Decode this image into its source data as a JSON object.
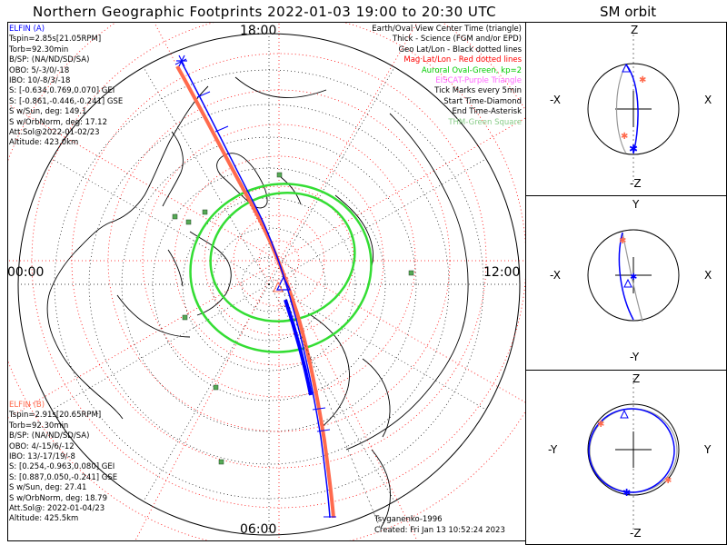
{
  "title": "Northern Geographic Footprints 2022-01-03 19:00 to 20:30 UTC",
  "sm_title": "SM orbit",
  "map": {
    "top_label": "18:00",
    "left_label": "00:00",
    "right_label": "12:00",
    "bottom_label": "06:00",
    "credit": "Tsyganenko-1996",
    "created": "Created: Fri Jan 13 10:52:24 2023"
  },
  "elfin_a": {
    "name": "ELFIN (A)",
    "color": "#0000ff",
    "lines": [
      "Tspin=2.85s[21.05RPM]",
      "Torb=92.30min",
      "B/SP: (NA/ND/SD/SA)",
      "OBO: 5/-3/0/-18",
      "IBO: 10/-8/3/-18",
      "S: [-0.634,0.769,0.070] GEI",
      "S: [-0.861,-0.446,-0.241] GSE",
      "S w/Sun, deg: 149.1",
      "S w/OrbNorm, deg: 17.12",
      "Att.Sol@2022-01-02/23",
      "Altitude: 423.0km"
    ]
  },
  "elfin_b": {
    "name": "ELFIN (B)",
    "color": "#ff6a4d",
    "lines": [
      "Tspin=2.91s[20.65RPM]",
      "Torb=92.30min",
      "B/SP: (NA/ND/SD/SA)",
      "OBO: 4/-15/6/-12",
      "IBO: 13/-17/19/-8",
      "S: [0.254,-0.963,0.080] GEI",
      "S: [0.887,0.050,-0.241] GSE",
      "S w/Sun, deg: 27.41",
      "S w/OrbNorm, deg: 18.79",
      "Att.Sol@: 2022-01-04/23",
      "Altitude: 425.5km"
    ]
  },
  "legend": [
    {
      "text": "Earth/Oval View Center Time (triangle)",
      "color": "#000000"
    },
    {
      "text": "Thick - Science (FGM and/or EPD)",
      "color": "#000000"
    },
    {
      "text": "Geo Lat/Lon - Black dotted lines",
      "color": "#000000"
    },
    {
      "text": "Mag Lat/Lon - Red dotted lines",
      "color": "#ff0000"
    },
    {
      "text": "Auroral Oval-Green, kp=2",
      "color": "#00cc00"
    },
    {
      "text": "EISCAT-Purple Triangle",
      "color": "#ff66ff"
    },
    {
      "text": "Tick Marks every 5min",
      "color": "#000000"
    },
    {
      "text": "Start Time-Diamond",
      "color": "#000000"
    },
    {
      "text": "End Time-Asterisk",
      "color": "#000000"
    },
    {
      "text": "THM-Green Square",
      "color": "#88cc88"
    }
  ],
  "sm_panels": [
    {
      "top": "Z",
      "bottom": "-Z",
      "left": "-X",
      "right": "X"
    },
    {
      "top": "Y",
      "bottom": "-Y",
      "left": "-X",
      "right": "X"
    },
    {
      "top": "Z",
      "bottom": "-Z",
      "left": "-Y",
      "right": "Y"
    }
  ]
}
